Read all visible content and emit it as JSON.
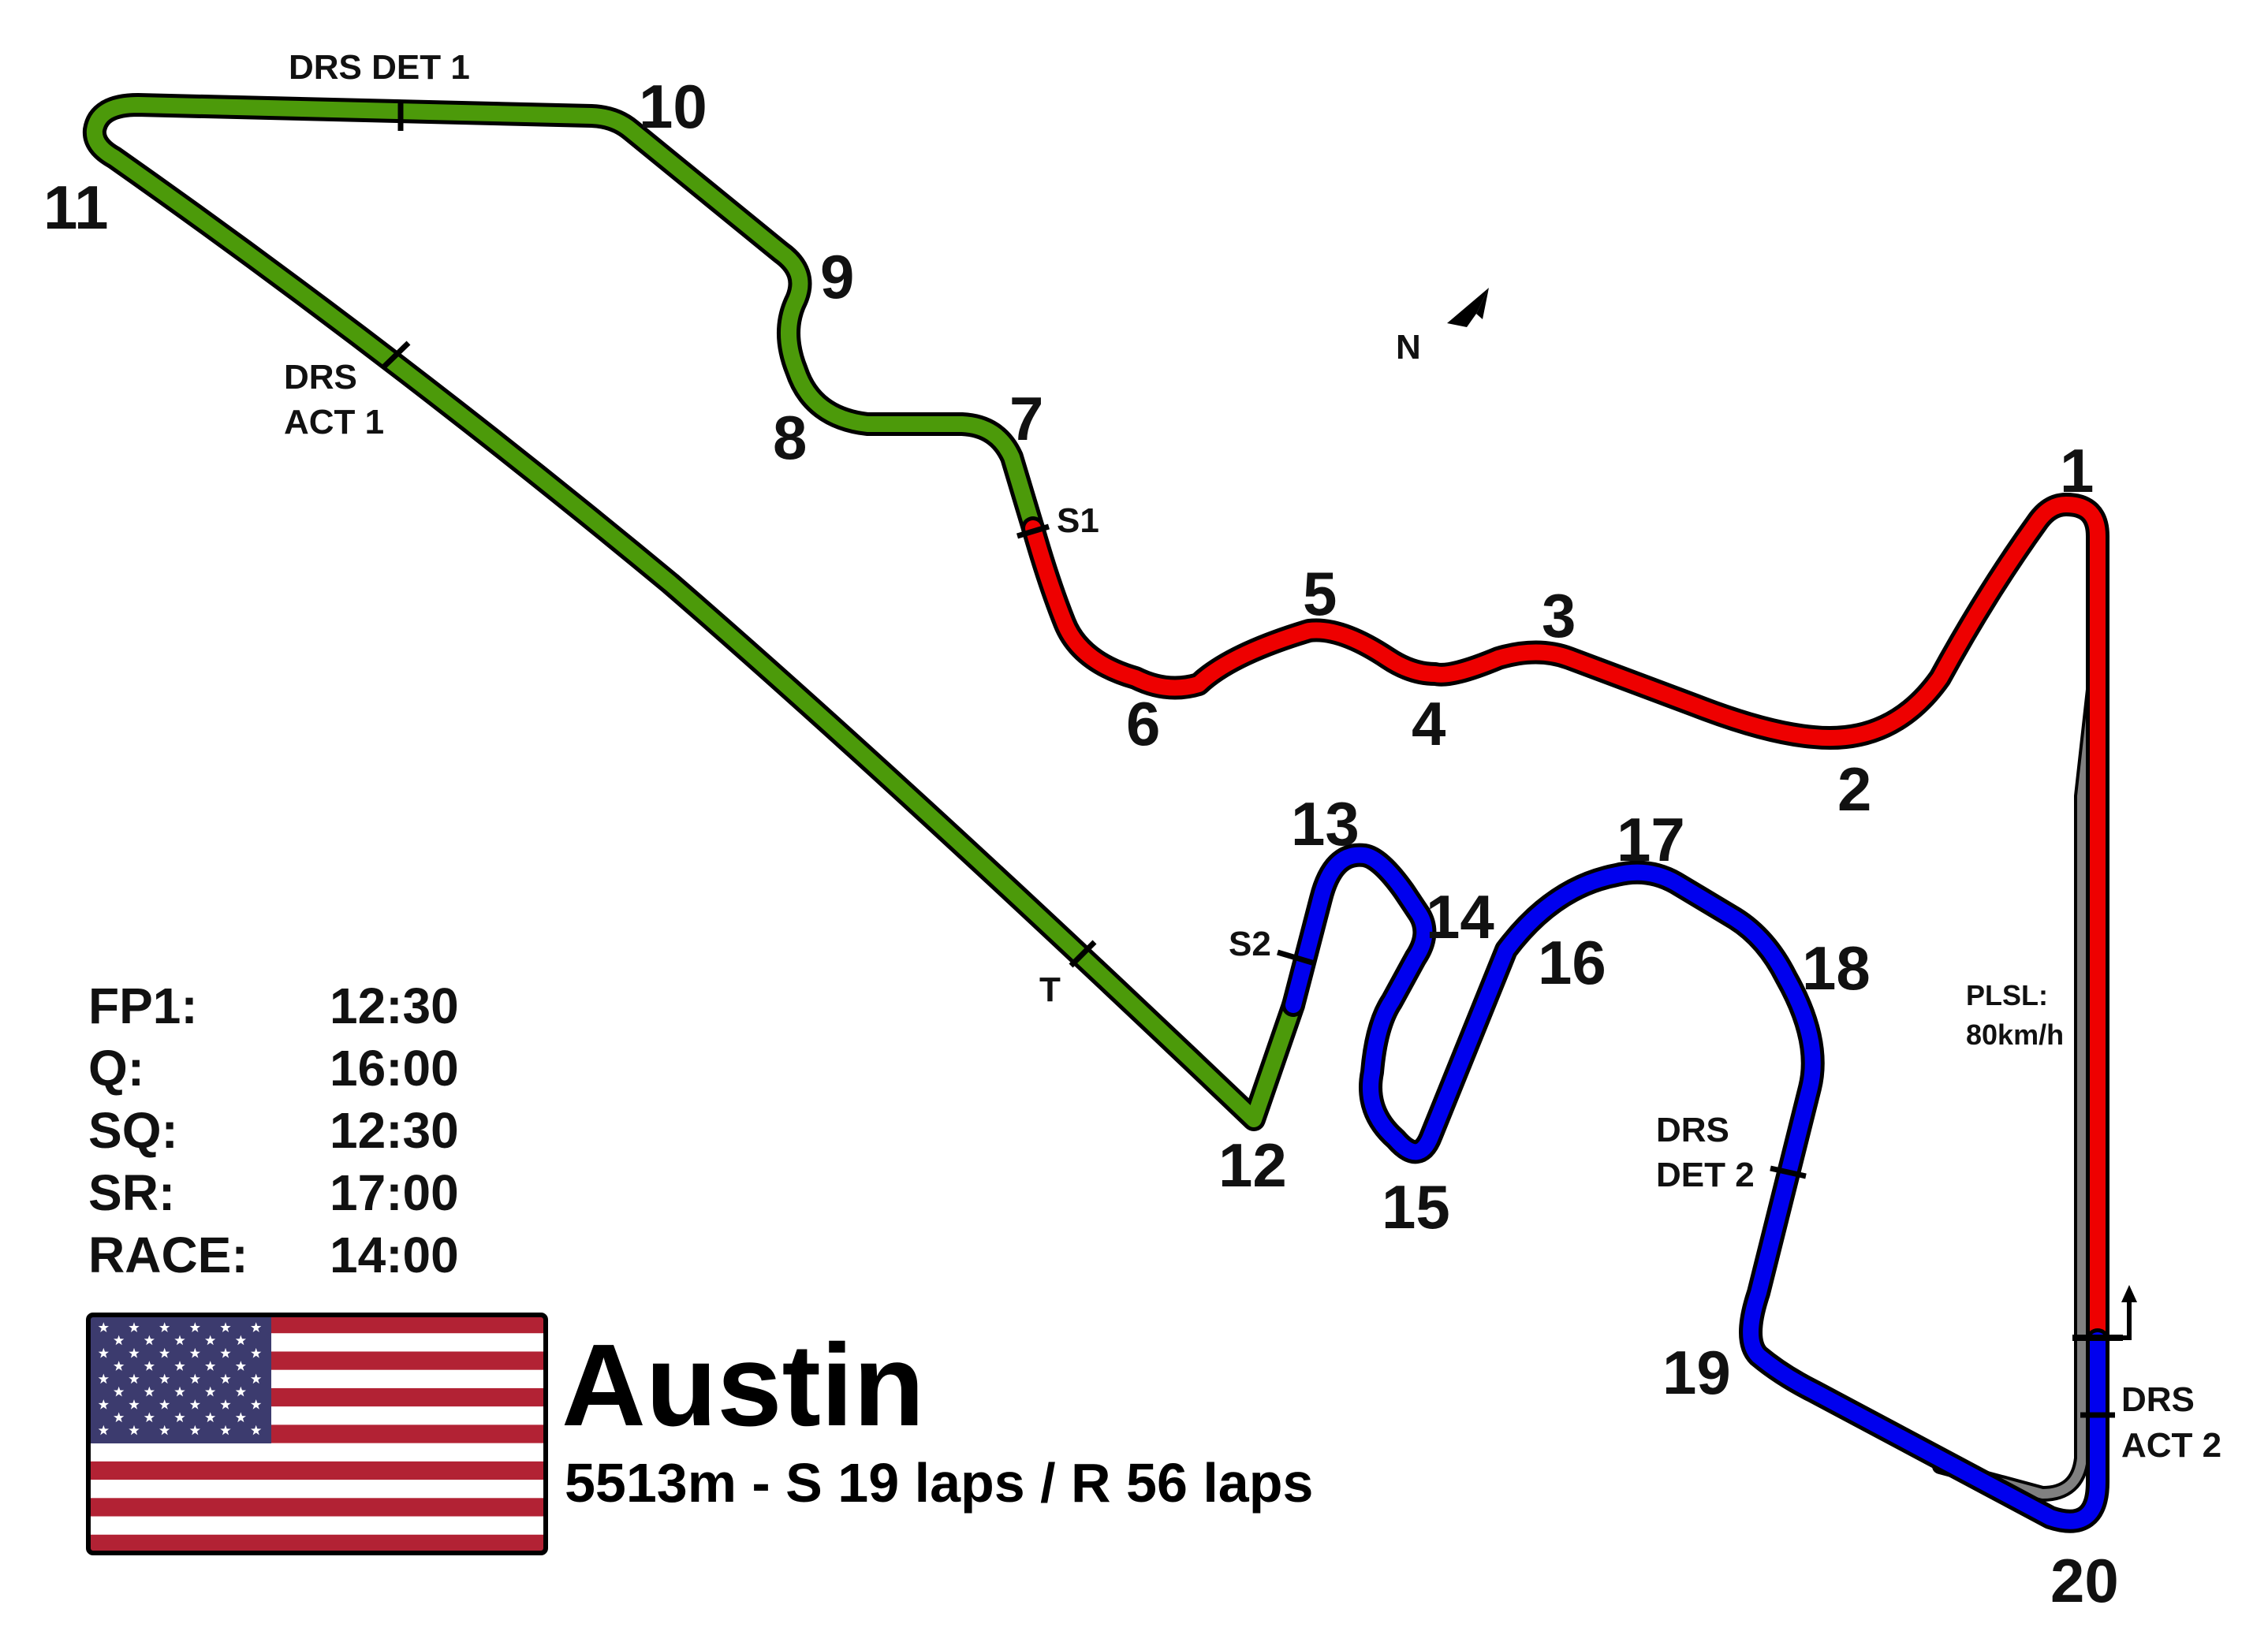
{
  "circuit": {
    "name": "Austin",
    "details": "5513m - S 19 laps / R 56 laps"
  },
  "schedule": [
    {
      "session": "FP1:",
      "time": "12:30"
    },
    {
      "session": "Q:",
      "time": "16:00"
    },
    {
      "session": "SQ:",
      "time": "12:30"
    },
    {
      "session": "SR:",
      "time": "17:00"
    },
    {
      "session": "RACE:",
      "time": "14:00"
    }
  ],
  "turns": [
    "1",
    "2",
    "3",
    "4",
    "5",
    "6",
    "7",
    "8",
    "9",
    "10",
    "11",
    "12",
    "13",
    "14",
    "15",
    "16",
    "17",
    "18",
    "19",
    "20"
  ],
  "markers": {
    "drs_det_1": "DRS DET 1",
    "drs_act_1_line1": "DRS",
    "drs_act_1_line2": "ACT 1",
    "drs_det_2_line1": "DRS",
    "drs_det_2_line2": "DET 2",
    "drs_act_2_line1": "DRS",
    "drs_act_2_line2": "ACT 2",
    "s1": "S1",
    "s2": "S2",
    "t": "T",
    "north": "N",
    "pit_limit_line1": "PLSL:",
    "pit_limit_line2": "80km/h"
  },
  "colors": {
    "sector1": "#ee0000",
    "sector2": "#4c9a0a",
    "sector3": "#0000ee",
    "pitlane": "#808080",
    "outline": "#000000"
  },
  "flag": {
    "country": "United States",
    "icon": "us-flag-icon"
  }
}
